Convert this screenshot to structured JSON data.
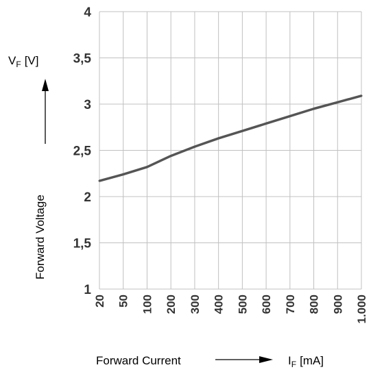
{
  "chart_data": {
    "type": "line",
    "categories": [
      "20",
      "50",
      "100",
      "200",
      "300",
      "400",
      "500",
      "600",
      "700",
      "800",
      "900",
      "1.000"
    ],
    "series": [
      {
        "values": [
          2.17,
          2.24,
          2.32,
          2.44,
          2.54,
          2.63,
          2.71,
          2.79,
          2.87,
          2.95,
          3.02,
          3.09
        ]
      }
    ],
    "yticks": [
      "1",
      "1,5",
      "2",
      "2,5",
      "3",
      "3,5",
      "4"
    ],
    "ylim": [
      1,
      4
    ],
    "ylabel": {
      "name": "Forward Voltage",
      "symbol": "V",
      "subscript": "F",
      "unit": "[V]"
    },
    "xlabel": {
      "name": "Forward Current",
      "symbol": "I",
      "subscript": "F",
      "unit": "[mA]"
    },
    "grid": true,
    "line_color": "#555555",
    "grid_color": "#c0c0c0"
  }
}
